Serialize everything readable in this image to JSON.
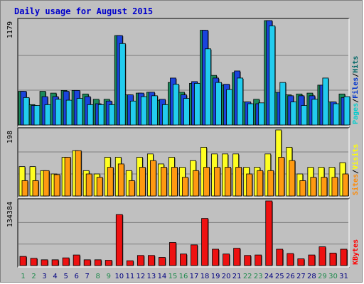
{
  "chart_data": {
    "type": "bar",
    "title": "Daily usage for August 2015",
    "categories": [
      "1",
      "2",
      "3",
      "4",
      "5",
      "6",
      "7",
      "8",
      "9",
      "10",
      "11",
      "12",
      "13",
      "14",
      "15",
      "16",
      "17",
      "18",
      "19",
      "20",
      "21",
      "22",
      "23",
      "24",
      "25",
      "26",
      "27",
      "28",
      "29",
      "30",
      "31"
    ],
    "weekend_days": [
      "1",
      "2",
      "8",
      "9",
      "15",
      "16",
      "22",
      "23",
      "29",
      "30"
    ],
    "colors": {
      "title": "#0000cc",
      "weekday": "#009966",
      "weekend": "#336633",
      "hits": "#006666",
      "files": "#0033cc",
      "pages": "#00cccc",
      "visits": "#ffff00",
      "sites": "#ff8800",
      "kbytes": "#ff0000",
      "panel": "#c0c0c0",
      "plot": "#c0c0c0"
    },
    "panels": [
      {
        "id": "hits-files-pages",
        "max_label": "1179",
        "ymax": 1179,
        "legend": [
          {
            "label": "Pages",
            "color": "#00cccc"
          },
          {
            "label": "Files",
            "color": "#0033cc"
          },
          {
            "label": "Hits",
            "color": "#006666"
          }
        ],
        "series": [
          {
            "name": "Hits",
            "color": "#1a8a5a",
            "values": [
              380,
              230,
              380,
              360,
              390,
              390,
              350,
              290,
              290,
              1010,
              340,
              360,
              370,
              280,
              480,
              370,
              470,
              1070,
              560,
              450,
              590,
              260,
              290,
              1179,
              370,
              340,
              350,
              360,
              450,
              260,
              350
            ]
          },
          {
            "name": "Files",
            "color": "#1a44dd",
            "values": [
              380,
              220,
              320,
              320,
              380,
              390,
              320,
              240,
              270,
              1010,
              340,
              360,
              370,
              290,
              530,
              340,
              490,
              1070,
              530,
              460,
              610,
              260,
              240,
              1179,
              370,
              330,
              330,
              330,
              450,
              260,
              310
            ]
          },
          {
            "name": "Pages",
            "color": "#22ccee",
            "values": [
              310,
              220,
              230,
              290,
              280,
              300,
              230,
              230,
              230,
              920,
              270,
              320,
              330,
              230,
              460,
              300,
              470,
              860,
              480,
              400,
              530,
              240,
              250,
              1120,
              480,
              260,
              220,
              290,
              530,
              240,
              320
            ]
          }
        ]
      },
      {
        "id": "visits-sites",
        "max_label": "198",
        "ymax": 198,
        "legend": [
          {
            "label": "Sites",
            "color": "#ff8800"
          },
          {
            "label": "Visits",
            "color": "#ffff00"
          }
        ],
        "series": [
          {
            "name": "Visits",
            "color": "#ffff22",
            "values": [
              88,
              88,
              76,
              66,
              116,
              136,
              76,
              66,
              116,
              116,
              76,
              116,
              126,
              96,
              116,
              86,
              106,
              146,
              126,
              126,
              126,
              86,
              86,
              126,
              198,
              146,
              66,
              86,
              86,
              86,
              100
            ]
          },
          {
            "name": "Sites",
            "color": "#ff9911",
            "values": [
              46,
              46,
              76,
              64,
              116,
              136,
              66,
              56,
              86,
              96,
              46,
              86,
              106,
              86,
              86,
              56,
              76,
              86,
              86,
              86,
              86,
              66,
              76,
              76,
              116,
              106,
              46,
              56,
              56,
              56,
              66
            ]
          }
        ]
      },
      {
        "id": "kbytes",
        "max_label": "134384",
        "ymax": 134384,
        "legend": [
          {
            "label": "KBytes",
            "color": "#ff0000"
          }
        ],
        "series": [
          {
            "name": "KBytes",
            "color": "#ee1111",
            "values": [
              19000,
              15000,
              12000,
              12000,
              16000,
              22000,
              12000,
              12000,
              11000,
              106000,
              10000,
              21000,
              21000,
              17000,
              48000,
              24000,
              43000,
              98000,
              34000,
              24000,
              36000,
              21000,
              22000,
              134384,
              34000,
              25000,
              14000,
              22000,
              39000,
              26000,
              34000
            ]
          }
        ]
      }
    ]
  }
}
